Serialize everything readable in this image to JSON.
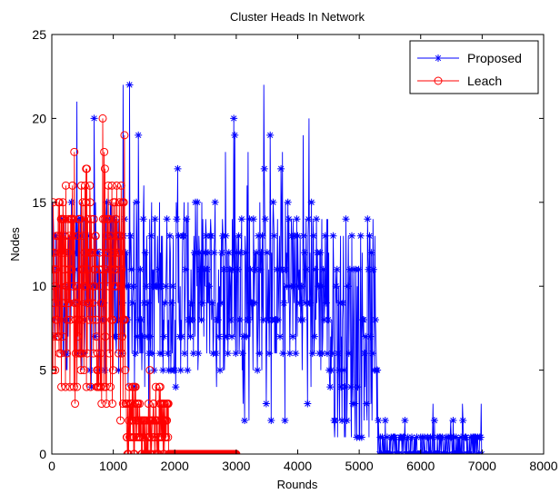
{
  "chart_data": {
    "type": "line",
    "title": "Cluster Heads In Network",
    "xlabel": "Rounds",
    "ylabel": "Nodes",
    "xlim": [
      0,
      8000
    ],
    "ylim": [
      0,
      25
    ],
    "xticks": [
      0,
      1000,
      2000,
      3000,
      4000,
      5000,
      6000,
      7000,
      8000
    ],
    "yticks": [
      0,
      5,
      10,
      15,
      20,
      25
    ],
    "xtick_labels": [
      "0",
      "1000",
      "2000",
      "3000",
      "4000",
      "5000",
      "6000",
      "7000",
      "8000"
    ],
    "ytick_labels": [
      "0",
      "5",
      "10",
      "15",
      "20",
      "25"
    ],
    "grid": false,
    "legend_position": "top-right",
    "series": [
      {
        "name": "Proposed",
        "color": "#0000ff",
        "marker": "asterisk",
        "x_range": [
          0,
          7000
        ],
        "segments": [
          {
            "x_from": 0,
            "x_to": 4500,
            "typical_range": [
              5,
              15
            ],
            "full_range": [
              1,
              22
            ]
          },
          {
            "x_from": 4500,
            "x_to": 5300,
            "typical_range": [
              1,
              14
            ],
            "full_range": [
              0,
              14
            ]
          },
          {
            "x_from": 5300,
            "x_to": 7000,
            "typical_range": [
              0,
              1
            ],
            "full_range": [
              0,
              3
            ]
          }
        ],
        "peak": {
          "x": 3450,
          "y": 22
        }
      },
      {
        "name": "Leach",
        "color": "#ff0000",
        "marker": "circle",
        "x_range": [
          0,
          3000
        ],
        "segments": [
          {
            "x_from": 0,
            "x_to": 1200,
            "typical_range": [
              3,
              16
            ],
            "full_range": [
              2,
              20
            ]
          },
          {
            "x_from": 1200,
            "x_to": 1900,
            "typical_range": [
              0,
              3
            ],
            "full_range": [
              0,
              5
            ]
          },
          {
            "x_from": 1900,
            "x_to": 3000,
            "typical_range": [
              0,
              0
            ],
            "full_range": [
              0,
              0
            ]
          }
        ],
        "peak": {
          "x": 830,
          "y": 20
        }
      }
    ]
  }
}
